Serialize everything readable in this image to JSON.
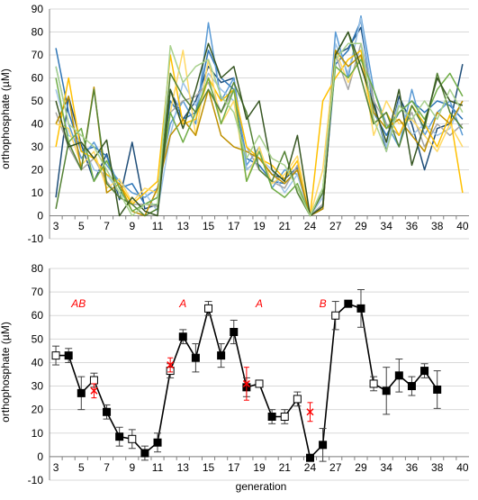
{
  "chart_data": [
    {
      "type": "line",
      "title": "",
      "xlabel": "",
      "ylabel": "orthophosphate (µM)",
      "ylim": [
        -10,
        90
      ],
      "yticks": [
        -10,
        0,
        10,
        20,
        30,
        40,
        50,
        60,
        70,
        80,
        90
      ],
      "x_tick_labels": [
        "3",
        "5",
        "7",
        "9",
        "11",
        "13",
        "15",
        "17",
        "19",
        "21",
        "24",
        "27",
        "29",
        "34",
        "36",
        "38",
        "40"
      ],
      "x": [
        "3",
        "4",
        "5",
        "6",
        "7",
        "8",
        "9",
        "10",
        "11",
        "12",
        "13",
        "14",
        "15",
        "16",
        "17",
        "18",
        "19",
        "20",
        "21",
        "22",
        "24",
        "26",
        "27",
        "28",
        "29",
        "33",
        "34",
        "35",
        "36",
        "37",
        "38",
        "39",
        "40"
      ],
      "grid": "horizontal",
      "legend": "none",
      "series": [
        {
          "color": "#1f4e79",
          "values": [
            8,
            52,
            31,
            15,
            27,
            7,
            32,
            3,
            5,
            55,
            42,
            50,
            65,
            58,
            60,
            20,
            25,
            18,
            16,
            21,
            0,
            3,
            70,
            73,
            82,
            50,
            28,
            52,
            40,
            20,
            38,
            40,
            66
          ]
        },
        {
          "color": "#2e75b6",
          "values": [
            73,
            45,
            28,
            30,
            26,
            12,
            14,
            5,
            8,
            50,
            42,
            45,
            72,
            60,
            55,
            25,
            22,
            15,
            14,
            20,
            0,
            5,
            66,
            72,
            85,
            45,
            35,
            45,
            50,
            45,
            50,
            48,
            42
          ]
        },
        {
          "color": "#5b9bd5",
          "values": [
            65,
            40,
            25,
            32,
            22,
            15,
            10,
            8,
            12,
            40,
            50,
            40,
            84,
            50,
            60,
            22,
            30,
            12,
            20,
            18,
            0,
            10,
            80,
            60,
            87,
            55,
            40,
            30,
            55,
            35,
            45,
            50,
            35
          ]
        },
        {
          "color": "#9dc3e6",
          "values": [
            55,
            35,
            32,
            20,
            18,
            10,
            5,
            10,
            2,
            35,
            58,
            48,
            62,
            55,
            50,
            20,
            25,
            20,
            10,
            18,
            0,
            8,
            75,
            62,
            86,
            48,
            30,
            50,
            35,
            40,
            35,
            38,
            50
          ]
        },
        {
          "color": "#a5a5a5",
          "values": [
            45,
            30,
            20,
            25,
            15,
            8,
            5,
            5,
            4,
            45,
            50,
            52,
            58,
            45,
            55,
            30,
            20,
            15,
            12,
            22,
            0,
            5,
            70,
            55,
            75,
            50,
            40,
            35,
            45,
            30,
            40,
            35,
            40
          ]
        },
        {
          "color": "#ffc000",
          "values": [
            30,
            60,
            28,
            25,
            18,
            14,
            5,
            10,
            15,
            70,
            40,
            42,
            60,
            50,
            55,
            30,
            25,
            22,
            16,
            24,
            0,
            50,
            60,
            68,
            72,
            40,
            45,
            35,
            48,
            40,
            30,
            44,
            10
          ]
        },
        {
          "color": "#ffd966",
          "values": [
            40,
            38,
            22,
            28,
            12,
            16,
            6,
            12,
            10,
            45,
            72,
            35,
            68,
            40,
            50,
            15,
            30,
            14,
            18,
            26,
            0,
            20,
            72,
            58,
            70,
            35,
            50,
            40,
            42,
            35,
            28,
            40,
            30
          ]
        },
        {
          "color": "#bf9000",
          "values": [
            40,
            52,
            20,
            56,
            10,
            14,
            2,
            0,
            12,
            35,
            42,
            35,
            55,
            35,
            30,
            28,
            25,
            18,
            14,
            20,
            0,
            3,
            72,
            65,
            70,
            45,
            38,
            42,
            35,
            28,
            45,
            40,
            50
          ]
        },
        {
          "color": "#70ad47",
          "values": [
            60,
            32,
            38,
            15,
            24,
            12,
            2,
            5,
            8,
            45,
            32,
            45,
            60,
            40,
            55,
            15,
            28,
            12,
            8,
            14,
            0,
            12,
            65,
            60,
            68,
            55,
            38,
            45,
            50,
            42,
            55,
            62,
            52
          ]
        },
        {
          "color": "#548235",
          "values": [
            3,
            32,
            20,
            55,
            14,
            8,
            5,
            0,
            3,
            62,
            52,
            45,
            55,
            45,
            58,
            45,
            20,
            15,
            28,
            10,
            0,
            10,
            70,
            80,
            60,
            40,
            45,
            30,
            48,
            38,
            62,
            45,
            38
          ]
        },
        {
          "color": "#375623",
          "values": [
            50,
            30,
            32,
            25,
            33,
            0,
            8,
            2,
            0,
            55,
            38,
            55,
            75,
            60,
            65,
            42,
            50,
            20,
            15,
            35,
            0,
            4,
            70,
            80,
            65,
            48,
            32,
            55,
            22,
            40,
            60,
            50,
            48
          ]
        },
        {
          "color": "#a9d18e",
          "values": [
            65,
            40,
            35,
            30,
            20,
            10,
            0,
            5,
            5,
            74,
            58,
            65,
            68,
            52,
            45,
            25,
            35,
            25,
            22,
            12,
            0,
            12,
            68,
            75,
            75,
            42,
            28,
            48,
            42,
            50,
            42,
            55,
            45
          ]
        }
      ]
    },
    {
      "type": "line",
      "title": "",
      "xlabel": "generation",
      "ylabel": "orthophosphate (µM)",
      "ylim": [
        -10,
        80
      ],
      "yticks": [
        -10,
        0,
        10,
        20,
        30,
        40,
        50,
        60,
        70,
        80
      ],
      "x_tick_labels": [
        "3",
        "5",
        "7",
        "9",
        "11",
        "13",
        "15",
        "17",
        "19",
        "21",
        "24",
        "27",
        "29",
        "34",
        "36",
        "38",
        "40"
      ],
      "x": [
        "3",
        "4",
        "5",
        "6",
        "7",
        "8",
        "9",
        "10",
        "11",
        "12",
        "13",
        "14",
        "15",
        "16",
        "17",
        "18",
        "19",
        "20",
        "21",
        "22",
        "24",
        "26",
        "27",
        "28",
        "29",
        "33",
        "34",
        "35",
        "36",
        "37",
        "38",
        "39",
        "40"
      ],
      "grid": "horizontal",
      "legend": "none",
      "series": [
        {
          "color": "#000000",
          "values": [
            43,
            43,
            27,
            32.5,
            19,
            8.5,
            7.5,
            1.5,
            6,
            36.5,
            51,
            42,
            63,
            43,
            53,
            29.5,
            31,
            17,
            17,
            24.5,
            -0.5,
            5,
            60,
            65,
            63,
            31,
            28,
            34.5,
            30,
            36.5,
            28.5
          ],
          "x_values": [
            "3",
            "4",
            "5",
            "6",
            "7",
            "8",
            "9",
            "10",
            "11",
            "12",
            "13",
            "14",
            "15",
            "16",
            "17",
            "18",
            "19",
            "20",
            "21",
            "22",
            "24",
            "26",
            "27",
            "28",
            "29",
            "33",
            "34",
            "35",
            "36",
            "37",
            "38"
          ],
          "marker_fill": [
            "open",
            "filled",
            "filled",
            "open",
            "filled",
            "filled",
            "open",
            "filled",
            "filled",
            "open",
            "filled",
            "filled",
            "open",
            "filled",
            "filled",
            "filled",
            "open",
            "filled",
            "open",
            "open",
            "filled",
            "filled",
            "open",
            "filled",
            "filled",
            "open",
            "filled",
            "filled",
            "filled",
            "filled",
            "filled"
          ],
          "errors": [
            4,
            3,
            7,
            3,
            3,
            4,
            4,
            3,
            4,
            3,
            3,
            6,
            3,
            5,
            5,
            4,
            1,
            3,
            3,
            3,
            0.5,
            7,
            6,
            1,
            8,
            3,
            10,
            7,
            4,
            3,
            8
          ]
        },
        {
          "color": "#ff0000",
          "marker": "x",
          "values": [
            28,
            39,
            31,
            19
          ],
          "x_values": [
            "6",
            "12",
            "18",
            "24"
          ],
          "errors": [
            3,
            3,
            7,
            4
          ]
        }
      ],
      "annotations": [
        "AB",
        "A",
        "A",
        "B"
      ]
    }
  ]
}
